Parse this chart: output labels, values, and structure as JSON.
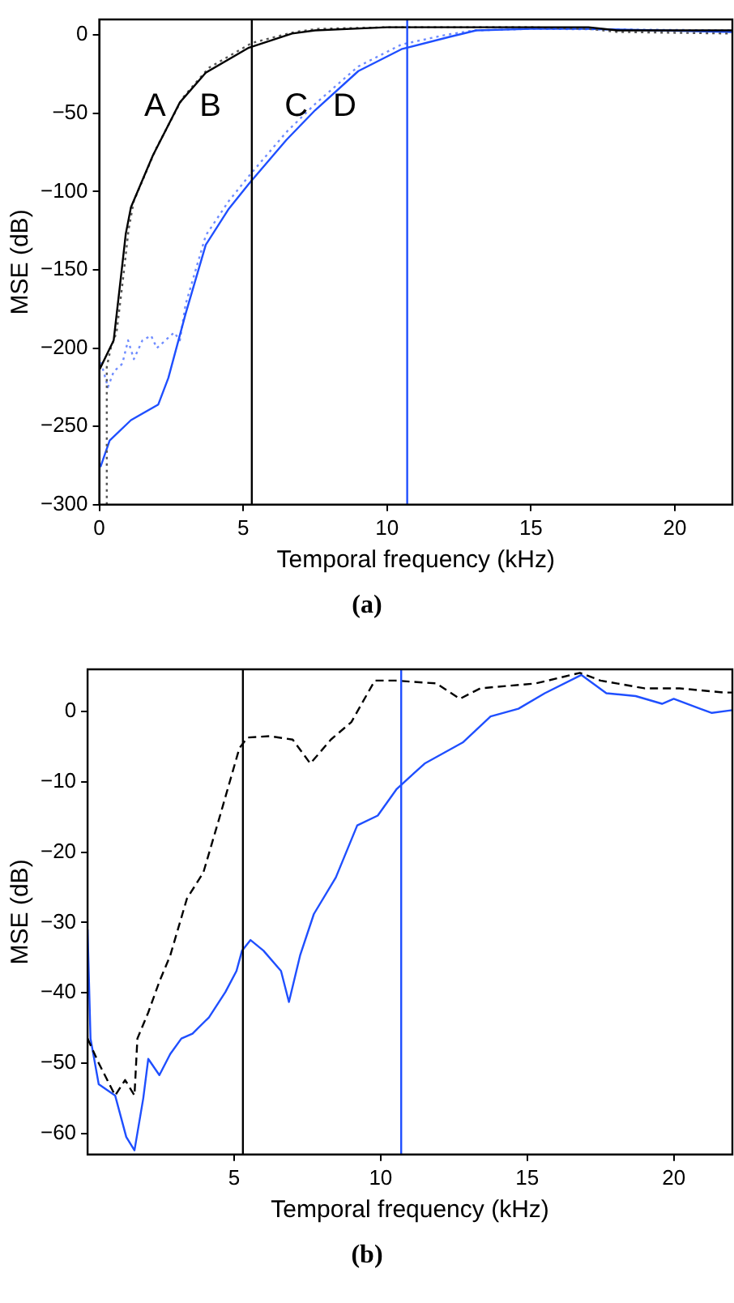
{
  "chart_data": [
    {
      "type": "line",
      "xlabel": "Temporal frequency (kHz)",
      "ylabel": "MSE (dB)",
      "xlim": [
        0,
        22
      ],
      "ylim": [
        -300,
        10
      ],
      "xticks": [
        0,
        5,
        10,
        15,
        20
      ],
      "yticks": [
        -300,
        -250,
        -200,
        -150,
        -100,
        -50,
        0
      ],
      "grid": false,
      "marker": "none",
      "series": [
        {
          "name": "A",
          "color": "#000000",
          "line_style": "solid",
          "x": [
            0,
            0.5,
            0.73,
            0.92,
            1.1,
            1.86,
            2.8,
            3.7,
            5.2,
            6.7,
            7.5,
            10,
            15,
            17,
            18,
            22
          ],
          "values": [
            -214,
            -195,
            -158,
            -127,
            -110,
            -77,
            -43,
            -24,
            -8,
            1,
            3,
            5,
            5,
            5,
            3,
            3
          ]
        },
        {
          "name": "B",
          "color": "#555555",
          "line_style": "dotted",
          "x": [
            0.26,
            0.26,
            0.4,
            0.6,
            0.83,
            1.02,
            1.2,
            1.96,
            2.9,
            3.8,
            5.3,
            6.8,
            7.6,
            10,
            15,
            17,
            18,
            22
          ],
          "values": [
            -300,
            -212,
            -200,
            -190,
            -155,
            -124,
            -106,
            -73,
            -40,
            -21,
            -5,
            2,
            4,
            5,
            5,
            4,
            2,
            1
          ]
        },
        {
          "name": "C",
          "color": "#1f4fff",
          "line_style": "solid",
          "x": [
            0.04,
            0.36,
            1.1,
            2.05,
            2.4,
            3.0,
            3.7,
            4.5,
            5.2,
            6.5,
            7.5,
            9,
            10.5,
            12.2,
            13.1,
            15,
            16.9,
            22
          ],
          "values": [
            -276,
            -259,
            -246,
            -236,
            -219,
            -178,
            -134,
            -111,
            -95,
            -67,
            -48,
            -23,
            -9,
            -1,
            3,
            4,
            4,
            2
          ]
        },
        {
          "name": "D",
          "color": "#6f8cff",
          "line_style": "dotted",
          "x": [
            0,
            0.3,
            0.5,
            0.8,
            1.0,
            1.2,
            1.5,
            1.8,
            2.0,
            2.3,
            2.6,
            2.8,
            3.0,
            3.7,
            4.5,
            5.2,
            6.5,
            7.5,
            9,
            10.5,
            12,
            13,
            15,
            22
          ],
          "values": [
            -205,
            -225,
            -215,
            -210,
            -195,
            -207,
            -195,
            -192,
            -200,
            -195,
            -190,
            -195,
            -172,
            -128,
            -106,
            -90,
            -62,
            -44,
            -20,
            -6,
            0,
            3,
            4,
            3
          ]
        }
      ],
      "ref_lines": [
        {
          "axis": "x",
          "value": 5.3,
          "color": "#000000"
        },
        {
          "axis": "x",
          "value": 10.7,
          "color": "#1f4fff"
        }
      ],
      "annotations": [
        "(a)"
      ]
    },
    {
      "type": "line",
      "xlabel": "Temporal frequency (kHz)",
      "ylabel": "MSE (dB)",
      "xlim": [
        0,
        22
      ],
      "ylim": [
        -63,
        6
      ],
      "xticks": [
        5,
        10,
        15,
        20
      ],
      "yticks": [
        -60,
        -50,
        -40,
        -30,
        -20,
        -10,
        0
      ],
      "grid": false,
      "marker": "none",
      "series": [
        {
          "color": "#000000",
          "line_style": "dashed",
          "x": [
            0,
            0.38,
            0.94,
            1.28,
            1.6,
            1.7,
            2.07,
            2.45,
            2.82,
            3.39,
            3.95,
            4.52,
            5.18,
            5.46,
            6.2,
            7.0,
            7.6,
            8.3,
            9.0,
            9.8,
            10.5,
            11.9,
            12.7,
            13.4,
            15.3,
            16.8,
            17.5,
            19,
            20.2,
            21.7,
            22
          ],
          "values": [
            -46.5,
            -50,
            -54.6,
            -52.4,
            -54.6,
            -46.5,
            -42.8,
            -38.4,
            -34.7,
            -26.6,
            -22.9,
            -14.8,
            -5.2,
            -3.7,
            -3.5,
            -4,
            -7.4,
            -4,
            -1.5,
            4.4,
            4.4,
            4,
            1.8,
            3.3,
            4,
            5.5,
            4.4,
            3.3,
            3.3,
            2.7,
            2.7
          ]
        },
        {
          "color": "#1f4fff",
          "line_style": "solid",
          "x": [
            0,
            0.1,
            0.38,
            0.94,
            1.32,
            1.6,
            1.9,
            2.07,
            2.45,
            2.82,
            3.2,
            3.58,
            4.14,
            4.7,
            5.08,
            5.27,
            5.56,
            6.0,
            6.6,
            6.87,
            7.25,
            7.72,
            8.47,
            9.2,
            9.9,
            10.55,
            11.5,
            12.8,
            13.75,
            14.7,
            15.6,
            16.85,
            17.7,
            18.7,
            19.6,
            20,
            20.9,
            21.3,
            22
          ],
          "values": [
            -31,
            -46.5,
            -53,
            -54.6,
            -60.5,
            -62.4,
            -55,
            -49.4,
            -51.7,
            -48.7,
            -46.5,
            -45.8,
            -43.5,
            -39.9,
            -36.9,
            -34,
            -32.5,
            -34,
            -36.9,
            -41.3,
            -34.7,
            -28.8,
            -23.6,
            -16.2,
            -14.8,
            -11,
            -7.4,
            -4.4,
            -0.7,
            0.4,
            2.6,
            5.2,
            2.6,
            2.2,
            1.1,
            1.8,
            0.4,
            -0.2,
            0.2
          ]
        }
      ],
      "ref_lines": [
        {
          "axis": "x",
          "value": 5.3,
          "color": "#000000"
        },
        {
          "axis": "x",
          "value": 10.7,
          "color": "#1f4fff"
        }
      ],
      "annotations": [
        "(b)"
      ]
    }
  ]
}
